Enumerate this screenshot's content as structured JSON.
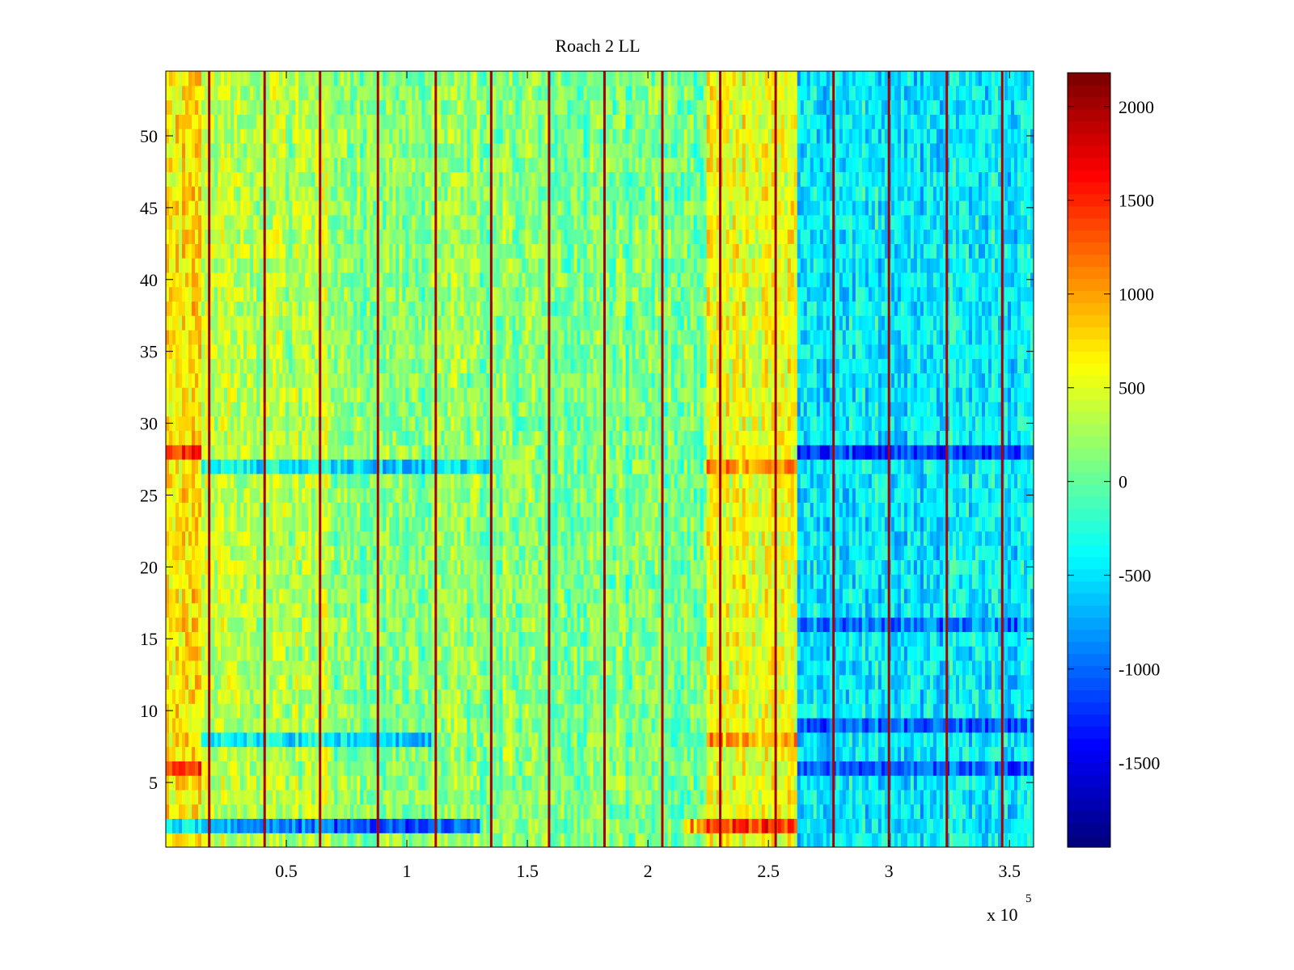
{
  "chart_data": [
    {
      "type": "heatmap",
      "title": "Roach 2 LL",
      "xlabel": "",
      "ylabel": "",
      "x_exponent_label": "x 10",
      "x_exponent_power": "5",
      "x_ticks": [
        0.5,
        1,
        1.5,
        2,
        2.5,
        3,
        3.5
      ],
      "x_tick_labels": [
        "0.5",
        "1",
        "1.5",
        "2",
        "2.5",
        "3",
        "3.5"
      ],
      "xlim": [
        0,
        360000
      ],
      "y_ticks": [
        5,
        10,
        15,
        20,
        25,
        30,
        35,
        40,
        45,
        50
      ],
      "y_tick_labels": [
        "5",
        "10",
        "15",
        "20",
        "25",
        "30",
        "35",
        "40",
        "45",
        "50"
      ],
      "ylim": [
        0.5,
        54.5
      ],
      "rows": 54,
      "colormap": "jet",
      "clim": [
        -1950,
        2180
      ],
      "colorbar_ticks": [
        -1500,
        -1000,
        -500,
        0,
        500,
        1000,
        1500,
        2000
      ],
      "colorbar_tick_labels": [
        "-1500",
        "-1000",
        "-500",
        "0",
        "500",
        "1000",
        "1500",
        "2000"
      ],
      "grid": false,
      "regions": [
        {
          "x_from": 0,
          "x_to": 15000,
          "mean": 700
        },
        {
          "x_from": 15000,
          "x_to": 70000,
          "mean": 320
        },
        {
          "x_from": 70000,
          "x_to": 145000,
          "mean": 150
        },
        {
          "x_from": 145000,
          "x_to": 225000,
          "mean": 80
        },
        {
          "x_from": 225000,
          "x_to": 262000,
          "mean": 550
        },
        {
          "x_from": 262000,
          "x_to": 360000,
          "mean": -450
        }
      ],
      "vertical_line_positions": [
        18000,
        41000,
        64000,
        88000,
        112000,
        135000,
        159000,
        182000,
        206000,
        230000,
        253000,
        277000,
        300000,
        324000,
        347000
      ],
      "vertical_line_value": 2000,
      "row_offsets": [
        {
          "row": 2,
          "x_from": 0,
          "x_to": 130000,
          "offset": -1200
        },
        {
          "row": 2,
          "x_from": 215000,
          "x_to": 262000,
          "offset": 900
        },
        {
          "row": 6,
          "x_from": 0,
          "x_to": 15000,
          "offset": 800
        },
        {
          "row": 6,
          "x_from": 262000,
          "x_to": 360000,
          "offset": -600
        },
        {
          "row": 8,
          "x_from": 15000,
          "x_to": 110000,
          "offset": -700
        },
        {
          "row": 8,
          "x_from": 225000,
          "x_to": 262000,
          "offset": 500
        },
        {
          "row": 9,
          "x_from": 262000,
          "x_to": 360000,
          "offset": -600
        },
        {
          "row": 16,
          "x_from": 262000,
          "x_to": 360000,
          "offset": -500
        },
        {
          "row": 27,
          "x_from": 15000,
          "x_to": 135000,
          "offset": -700
        },
        {
          "row": 27,
          "x_from": 225000,
          "x_to": 262000,
          "offset": 500
        },
        {
          "row": 28,
          "x_from": 0,
          "x_to": 15000,
          "offset": 800
        },
        {
          "row": 28,
          "x_from": 262000,
          "x_to": 360000,
          "offset": -700
        }
      ],
      "noise_amplitude": 420
    }
  ]
}
